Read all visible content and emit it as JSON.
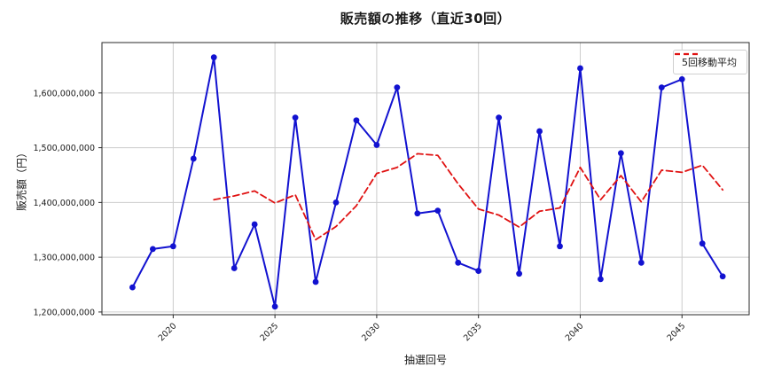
{
  "title": "販売額の推移（直近30回）",
  "x_axis_label": "抽選回号",
  "y_axis_label": "販売額（円）",
  "legend": {
    "ma_label": "5回移動平均"
  },
  "colors": {
    "series_line": "#1212d0",
    "moving_average_line": "#e01212",
    "grid": "#cccccc",
    "spine": "#2a2a2a",
    "text": "#1a1a1a"
  },
  "chart_data": {
    "type": "line",
    "title": "販売額の推移（直近30回）",
    "xlabel": "抽選回号",
    "ylabel": "販売額（円）",
    "x": [
      2018,
      2019,
      2020,
      2021,
      2022,
      2023,
      2024,
      2025,
      2026,
      2027,
      2028,
      2029,
      2030,
      2031,
      2032,
      2033,
      2034,
      2035,
      2036,
      2037,
      2038,
      2039,
      2040,
      2041,
      2042,
      2043,
      2044,
      2045,
      2046,
      2047
    ],
    "series": [
      {
        "name": "販売額",
        "color": "#1212d0",
        "style": "solid",
        "markers": true,
        "start_index": 0,
        "values": [
          1245000000,
          1315000000,
          1320000000,
          1480000000,
          1665000000,
          1280000000,
          1360000000,
          1210000000,
          1555000000,
          1255000000,
          1400000000,
          1550000000,
          1505000000,
          1610000000,
          1380000000,
          1385000000,
          1290000000,
          1275000000,
          1555000000,
          1270000000,
          1530000000,
          1320000000,
          1645000000,
          1260000000,
          1490000000,
          1290000000,
          1610000000,
          1625000000,
          1325000000,
          1265000000
        ]
      },
      {
        "name": "5回移動平均",
        "color": "#e01212",
        "style": "dashed",
        "markers": false,
        "start_index": 4,
        "values": [
          1405000000,
          1412000000,
          1421000000,
          1399000000,
          1414000000,
          1332000000,
          1356000000,
          1394000000,
          1453000000,
          1464000000,
          1489000000,
          1486000000,
          1434000000,
          1388000000,
          1377000000,
          1355000000,
          1384000000,
          1390000000,
          1464000000,
          1405000000,
          1449000000,
          1401000000,
          1459000000,
          1455000000,
          1468000000,
          1423000000
        ]
      }
    ],
    "xticks": [
      2020,
      2025,
      2030,
      2035,
      2040,
      2045
    ],
    "yticks": [
      1200000000,
      1300000000,
      1400000000,
      1500000000,
      1600000000
    ],
    "xlim": [
      2016.5,
      2048.3
    ],
    "ylim": [
      1195000000,
      1692000000
    ],
    "grid": true,
    "legend_position": "upper right"
  }
}
